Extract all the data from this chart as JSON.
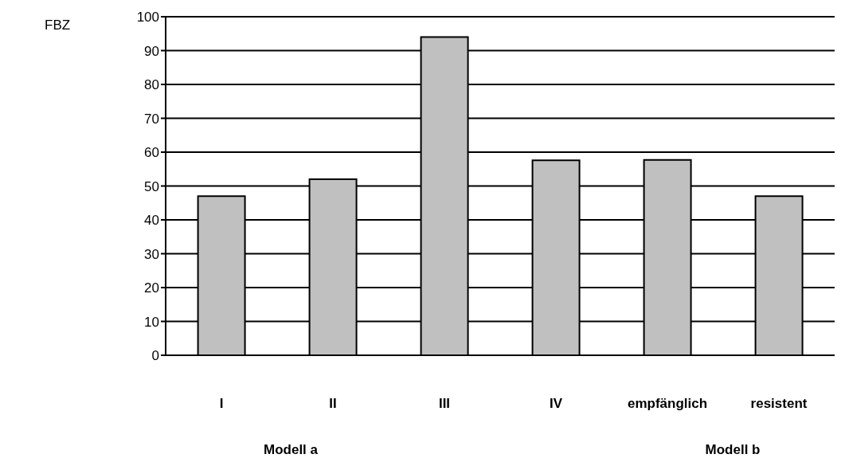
{
  "chart_data": {
    "type": "bar",
    "ylabel": "FBZ",
    "categories": [
      "I",
      "II",
      "III",
      "IV",
      "empfänglich",
      "resistent"
    ],
    "values": [
      47,
      52,
      94,
      57.6,
      57.7,
      47
    ],
    "color": "#c0c0c0",
    "ylim": [
      0,
      100
    ],
    "yticks": [
      0,
      10,
      20,
      30,
      40,
      50,
      60,
      70,
      80,
      90,
      100
    ],
    "grid": "y",
    "annotations": [
      "Modell a",
      "Modell b"
    ]
  }
}
